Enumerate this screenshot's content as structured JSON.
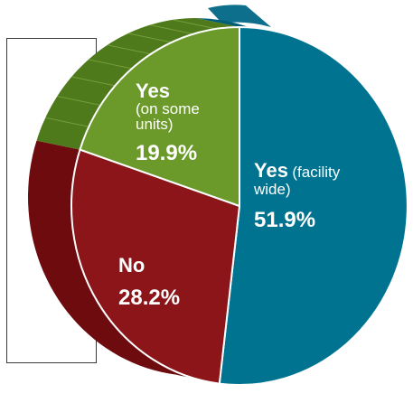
{
  "chart_data": {
    "type": "pie",
    "categories": [
      "Yes (facility wide)",
      "No",
      "Yes (on some units)"
    ],
    "values": [
      51.9,
      28.2,
      19.9
    ],
    "labels": [
      {
        "main": "Yes",
        "sub": "(facility",
        "sub2": "wide)",
        "pct": "51.9%"
      },
      {
        "main": "No",
        "pct": "28.2%"
      },
      {
        "main": "Yes",
        "sub": "(on some",
        "sub2": "units)",
        "pct": "19.9%"
      }
    ],
    "colors": {
      "yes_facility_wide": {
        "top": "#007390",
        "side": "#005f78",
        "back": "#0d6f8c"
      },
      "no": {
        "top": "#8b1519",
        "side": "#6e0b0f"
      },
      "yes_some_units": {
        "top": "#6b9a2a",
        "side": "#4f7a1c",
        "stripe": "#85ad45"
      }
    },
    "style": "3d-pie",
    "start_angle_deg": 0
  }
}
